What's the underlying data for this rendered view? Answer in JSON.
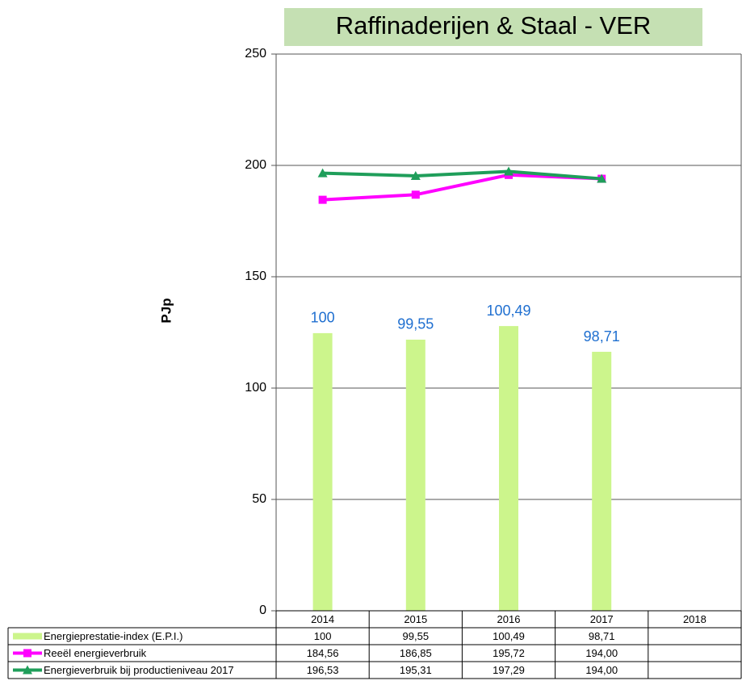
{
  "chart_data": {
    "type": "bar_line_table",
    "title": "Raffinaderijen & Staal  - VER",
    "y_label": "PJp",
    "categories": [
      "2014",
      "2015",
      "2016",
      "2017",
      "2018"
    ],
    "ylim": [
      0,
      250
    ],
    "yticks": [
      0,
      50,
      100,
      150,
      200,
      250
    ],
    "y2lim": [
      80.8,
      119.3
    ],
    "grid": true,
    "series": [
      {
        "name": "Energieprestatie-index (E.P.I.)",
        "type": "bar",
        "axis": "y2",
        "color": "#ccf58c",
        "values": [
          100,
          99.55,
          100.49,
          98.71,
          null
        ],
        "value_labels": [
          "100",
          "99,55",
          "100,49",
          "98,71",
          null
        ],
        "label_color": "#1f6fd0"
      },
      {
        "name": "Reeël energieverbruik",
        "type": "line",
        "marker": "square",
        "color": "#ff00ff",
        "values": [
          184.56,
          186.85,
          195.72,
          194.0,
          null
        ],
        "value_labels": [
          "184,56",
          "186,85",
          "195,72",
          "194,00",
          null
        ]
      },
      {
        "name": "Energieverbruik bij productieniveau 2017",
        "type": "line",
        "marker": "triangle",
        "color": "#1f9e5a",
        "values": [
          196.53,
          195.31,
          197.29,
          194.0,
          null
        ],
        "value_labels": [
          "196,53",
          "195,31",
          "197,29",
          "194,00",
          null
        ]
      }
    ]
  }
}
